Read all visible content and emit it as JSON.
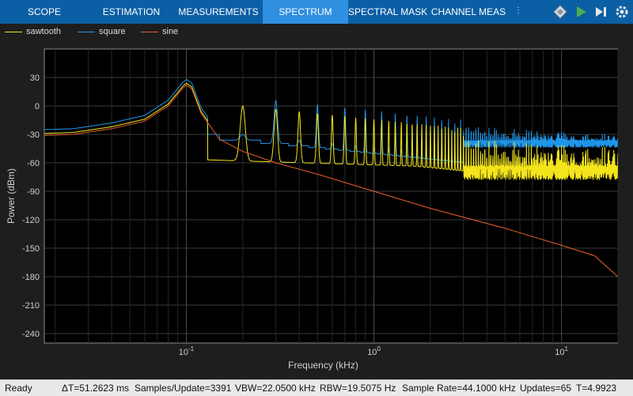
{
  "tabs": [
    {
      "label": "SCOPE",
      "active": false
    },
    {
      "label": "ESTIMATION",
      "active": false
    },
    {
      "label": "MEASUREMENTS",
      "active": false
    },
    {
      "label": "SPECTRUM",
      "active": true
    },
    {
      "label": "SPECTRAL MASK",
      "active": false
    },
    {
      "label": "CHANNEL MEAS",
      "active": false
    }
  ],
  "toolbar_icons": [
    "diamond-nav-icon",
    "run-play-icon",
    "step-forward-icon",
    "settings-gear-icon"
  ],
  "legend": [
    {
      "name": "sawtooth",
      "color": "#f3e41b"
    },
    {
      "name": "square",
      "color": "#1f95e8"
    },
    {
      "name": "sine",
      "color": "#e8602c"
    }
  ],
  "chart_data": {
    "type": "line",
    "xlabel": "Frequency (kHz)",
    "ylabel": "Power (dBm)",
    "x_scale": "log",
    "xlim": [
      0.0175,
      20
    ],
    "ylim": [
      -250,
      60
    ],
    "x_ticks": [
      {
        "value": 0.1,
        "base": "10",
        "exp": "-1"
      },
      {
        "value": 1,
        "base": "10",
        "exp": "0"
      },
      {
        "value": 10,
        "base": "10",
        "exp": "1"
      }
    ],
    "y_ticks": [
      30,
      0,
      -30,
      -60,
      -90,
      -120,
      -150,
      -180,
      -210,
      -240
    ],
    "grid": true,
    "fundamental_khz": 0.1,
    "series": [
      {
        "name": "sine",
        "color": "#e8602c",
        "points": [
          [
            0.0175,
            -31
          ],
          [
            0.025,
            -30
          ],
          [
            0.04,
            -24
          ],
          [
            0.06,
            -16
          ],
          [
            0.08,
            0
          ],
          [
            0.095,
            18
          ],
          [
            0.1,
            22
          ],
          [
            0.107,
            18
          ],
          [
            0.12,
            -8
          ],
          [
            0.15,
            -35
          ],
          [
            0.2,
            -48
          ],
          [
            0.3,
            -60
          ],
          [
            0.5,
            -72
          ],
          [
            1,
            -90
          ],
          [
            2,
            -108
          ],
          [
            5,
            -129
          ],
          [
            10,
            -147
          ],
          [
            15,
            -158
          ],
          [
            20,
            -180
          ]
        ]
      },
      {
        "name": "square",
        "color": "#1f95e8",
        "harmonic_peaks": "odd",
        "peak_near_1khz_dBm": -5,
        "floor_at_20khz_dBm": -40
      },
      {
        "name": "sawtooth",
        "color": "#f3e41b",
        "harmonic_peaks": "all",
        "peak_near_1khz_dBm": -10,
        "floor_at_20khz_dBm": -70
      }
    ]
  },
  "status": {
    "state": "Ready",
    "dt": "ΔT=51.2623 ms",
    "samples": "Samples/Update=3391",
    "vbw": "VBW=22.0500 kHz",
    "rbw": "RBW=19.5075 Hz",
    "sample_rate": "Sample Rate=44.1000 kHz",
    "updates": "Updates=65",
    "t": "T=4.9923"
  }
}
